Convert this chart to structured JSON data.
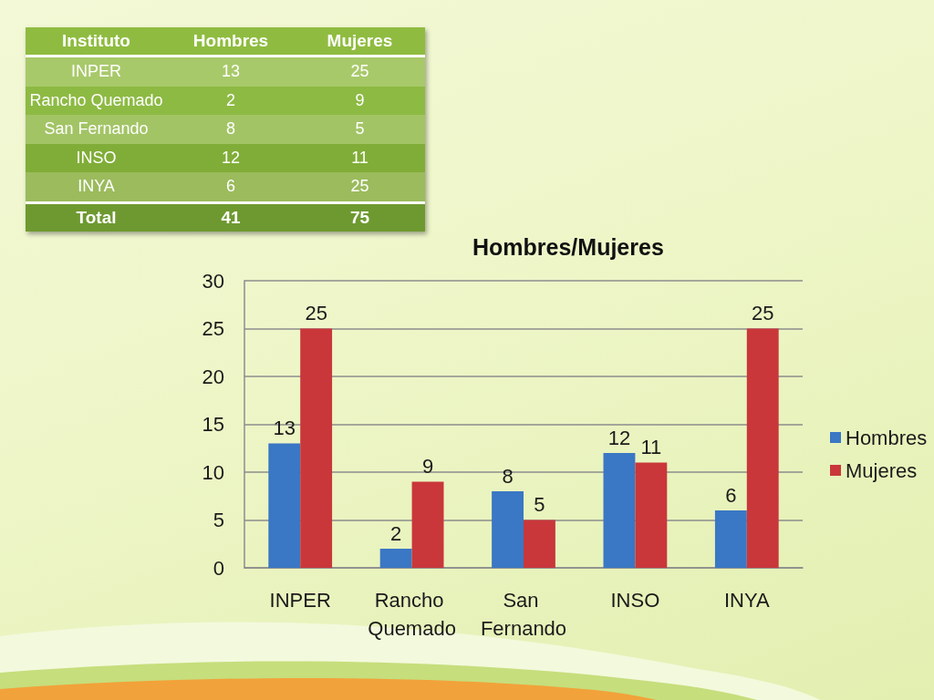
{
  "chart_data": [
    {
      "type": "other",
      "categories": [
        "INPER",
        "Rancho Quemado",
        "San Fernando",
        "INSO",
        "INYA"
      ],
      "series": [
        {
          "name": "Hombres",
          "colors": [
            "#a8c96a",
            "#8dba43",
            "#a2c465",
            "#80ad37",
            "#9bbb5d"
          ],
          "values": [
            13,
            2,
            8,
            12,
            6
          ]
        },
        {
          "name": "Mujeres",
          "colors": [
            "#a8c96a",
            "#8dba43",
            "#a2c465",
            "#80ad37",
            "#9bbb5d"
          ],
          "values": [
            25,
            9,
            5,
            11,
            25
          ]
        }
      ],
      "data_labels": true,
      "annotations": [
        "Instituto",
        "Total",
        "41",
        "75"
      ]
    },
    {
      "type": "bar",
      "title": "Hombres/Mujeres",
      "categories": [
        "INPER",
        "Rancho Quemado",
        "San Fernando",
        "INSO",
        "INYA"
      ],
      "series": [
        {
          "name": "Hombres",
          "color": "#3a77c4",
          "values": [
            13,
            2,
            8,
            12,
            6
          ]
        },
        {
          "name": "Mujeres",
          "color": "#c9373a",
          "values": [
            25,
            9,
            5,
            11,
            25
          ]
        }
      ],
      "ylim": [
        0,
        30
      ],
      "yticks": [
        0,
        5,
        10,
        15,
        20,
        25,
        30
      ],
      "grid": "y",
      "legend": "right",
      "data_labels": true
    }
  ]
}
